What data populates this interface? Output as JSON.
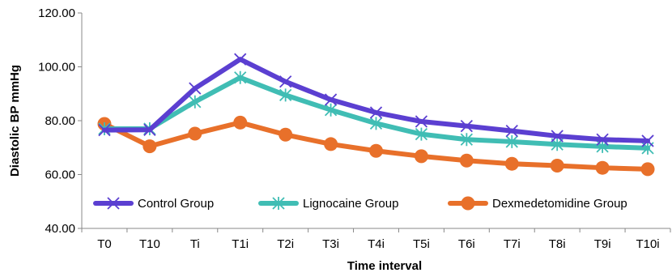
{
  "chart_data": {
    "type": "line",
    "xlabel": "Time interval",
    "ylabel": "Diastolic BP mmHg",
    "ylim": [
      40,
      120
    ],
    "yticks": [
      "40.00",
      "60.00",
      "80.00",
      "100.00",
      "120.00"
    ],
    "categories": [
      "T0",
      "T10",
      "Ti",
      "T1i",
      "T2i",
      "T3i",
      "T4i",
      "T5i",
      "T6i",
      "T7i",
      "T8i",
      "T9i",
      "T10i"
    ],
    "grid": false,
    "legend_position": "inside-bottom",
    "series": [
      {
        "name": "Control Group",
        "color": "#5b3fd1",
        "marker": "x",
        "values": [
          76.5,
          76.6,
          92.0,
          102.8,
          94.5,
          87.8,
          83.0,
          79.7,
          78.0,
          76.2,
          74.3,
          73.0,
          72.5
        ]
      },
      {
        "name": "Lignocaine Group",
        "color": "#40bdb4",
        "marker": "star",
        "values": [
          77.0,
          77.0,
          87.0,
          96.0,
          89.5,
          84.0,
          79.0,
          75.0,
          73.0,
          72.2,
          71.2,
          70.4,
          69.8
        ]
      },
      {
        "name": "Dexmedetomidine Group",
        "color": "#e8702a",
        "marker": "circle",
        "values": [
          78.8,
          70.5,
          75.2,
          79.3,
          74.8,
          71.3,
          68.8,
          66.8,
          65.2,
          64.0,
          63.3,
          62.5,
          62.0
        ]
      }
    ]
  }
}
